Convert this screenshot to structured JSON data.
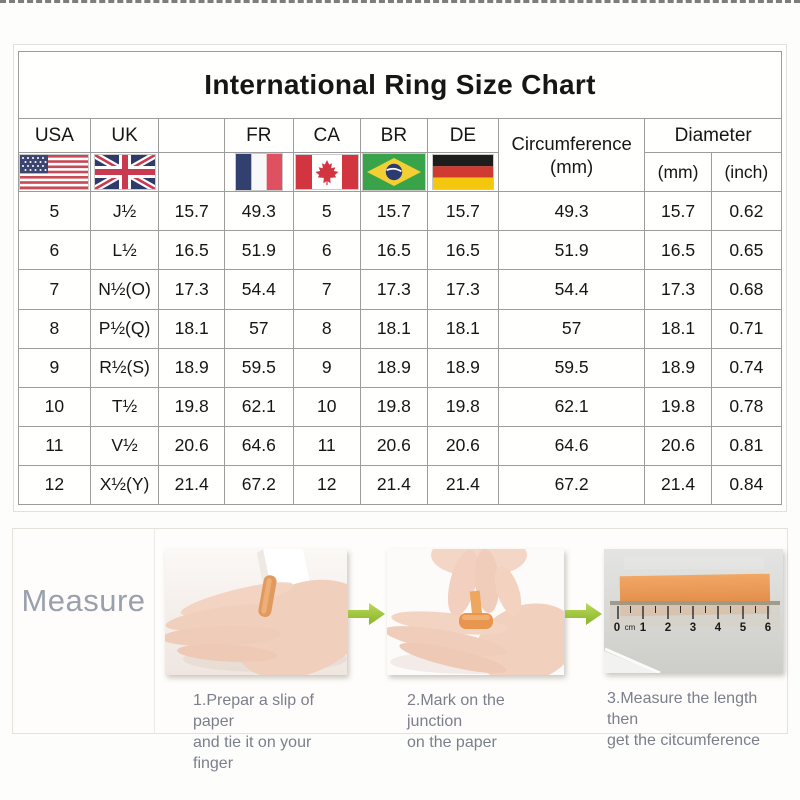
{
  "page": {
    "title": "International Ring Size Chart"
  },
  "table": {
    "header": {
      "usa": "USA",
      "uk": "UK",
      "blank": "",
      "fr": "FR",
      "ca": "CA",
      "br": "BR",
      "de": "DE",
      "circumference_line1": "Circumference",
      "circumference_line2": "(mm)",
      "diameter": "Diameter",
      "diameter_mm": "(mm)",
      "diameter_inch": "(inch)"
    },
    "rows": [
      [
        "5",
        "J½",
        "15.7",
        "49.3",
        "5",
        "15.7",
        "15.7",
        "49.3",
        "15.7",
        "0.62"
      ],
      [
        "6",
        "L½",
        "16.5",
        "51.9",
        "6",
        "16.5",
        "16.5",
        "51.9",
        "16.5",
        "0.65"
      ],
      [
        "7",
        "N½(O)",
        "17.3",
        "54.4",
        "7",
        "17.3",
        "17.3",
        "54.4",
        "17.3",
        "0.68"
      ],
      [
        "8",
        "P½(Q)",
        "18.1",
        "57",
        "8",
        "18.1",
        "18.1",
        "57",
        "18.1",
        "0.71"
      ],
      [
        "9",
        "R½(S)",
        "18.9",
        "59.5",
        "9",
        "18.9",
        "18.9",
        "59.5",
        "18.9",
        "0.74"
      ],
      [
        "10",
        "T½",
        "19.8",
        "62.1",
        "10",
        "19.8",
        "19.8",
        "62.1",
        "19.8",
        "0.78"
      ],
      [
        "11",
        "V½",
        "20.6",
        "64.6",
        "11",
        "20.6",
        "20.6",
        "64.6",
        "20.6",
        "0.81"
      ],
      [
        "12",
        "X½(Y)",
        "21.4",
        "67.2",
        "12",
        "21.4",
        "21.4",
        "67.2",
        "21.4",
        "0.84"
      ]
    ]
  },
  "chart_data": {
    "type": "table",
    "title": "International Ring Size Chart",
    "columns": [
      "USA",
      "UK",
      "",
      "FR",
      "CA",
      "BR",
      "DE",
      "Circumference (mm)",
      "Diameter (mm)",
      "Diameter (inch)"
    ],
    "rows": [
      [
        "5",
        "J½",
        "15.7",
        "49.3",
        "5",
        "15.7",
        "15.7",
        "49.3",
        "15.7",
        "0.62"
      ],
      [
        "6",
        "L½",
        "16.5",
        "51.9",
        "6",
        "16.5",
        "16.5",
        "51.9",
        "16.5",
        "0.65"
      ],
      [
        "7",
        "N½(O)",
        "17.3",
        "54.4",
        "7",
        "17.3",
        "17.3",
        "54.4",
        "17.3",
        "0.68"
      ],
      [
        "8",
        "P½(Q)",
        "18.1",
        "57",
        "8",
        "18.1",
        "18.1",
        "57",
        "18.1",
        "0.71"
      ],
      [
        "9",
        "R½(S)",
        "18.9",
        "59.5",
        "9",
        "18.9",
        "18.9",
        "59.5",
        "18.9",
        "0.74"
      ],
      [
        "10",
        "T½",
        "19.8",
        "62.1",
        "10",
        "19.8",
        "19.8",
        "62.1",
        "19.8",
        "0.78"
      ],
      [
        "11",
        "V½",
        "20.6",
        "64.6",
        "11",
        "20.6",
        "20.6",
        "64.6",
        "20.6",
        "0.81"
      ],
      [
        "12",
        "X½(Y)",
        "21.4",
        "67.2",
        "12",
        "21.4",
        "21.4",
        "67.2",
        "21.4",
        "0.84"
      ]
    ]
  },
  "measure": {
    "label": "Measure",
    "steps": [
      {
        "line1": "1.Prepar a slip of paper",
        "line2": "and tie it on your finger"
      },
      {
        "line1": "2.Mark on the junction",
        "line2": "on the paper"
      },
      {
        "line1": "3.Measure the length then",
        "line2": "get the citcumference"
      }
    ],
    "ruler": {
      "unit": "cm",
      "marks": [
        "0",
        "1",
        "2",
        "3",
        "4",
        "5",
        "6"
      ]
    }
  },
  "icons": {
    "flags": [
      "usa-flag",
      "uk-flag",
      "france-flag",
      "canada-flag",
      "brazil-flag",
      "germany-flag"
    ],
    "arrow": "green-right-arrow"
  },
  "colors": {
    "arrow_green": "#9cc43c",
    "grid_line": "#9c9c9c",
    "caption_text": "#7b7f8c",
    "measure_label": "#9aa0ac",
    "paper_strip_orange": "#e8954f"
  }
}
